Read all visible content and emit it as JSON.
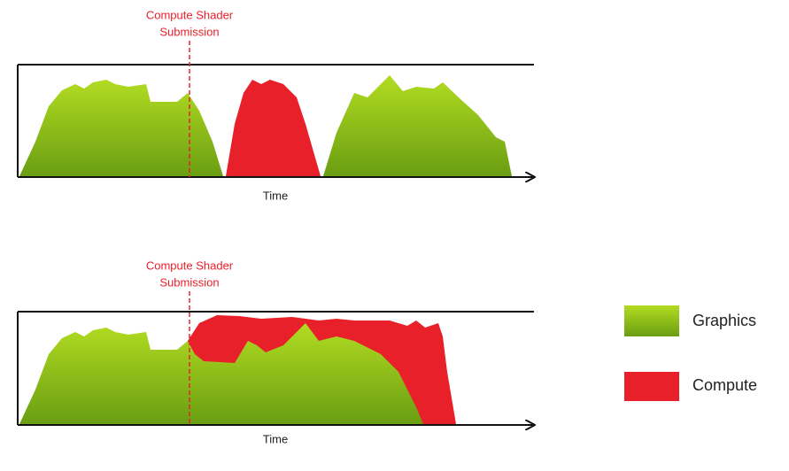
{
  "panels": [
    {
      "annotation": [
        "Compute Shader",
        "Submission"
      ],
      "x_label": "Time"
    },
    {
      "annotation": [
        "Compute Shader",
        "Submission"
      ],
      "x_label": "Time"
    }
  ],
  "legend": [
    {
      "label": "Graphics"
    },
    {
      "label": "Compute"
    }
  ]
}
